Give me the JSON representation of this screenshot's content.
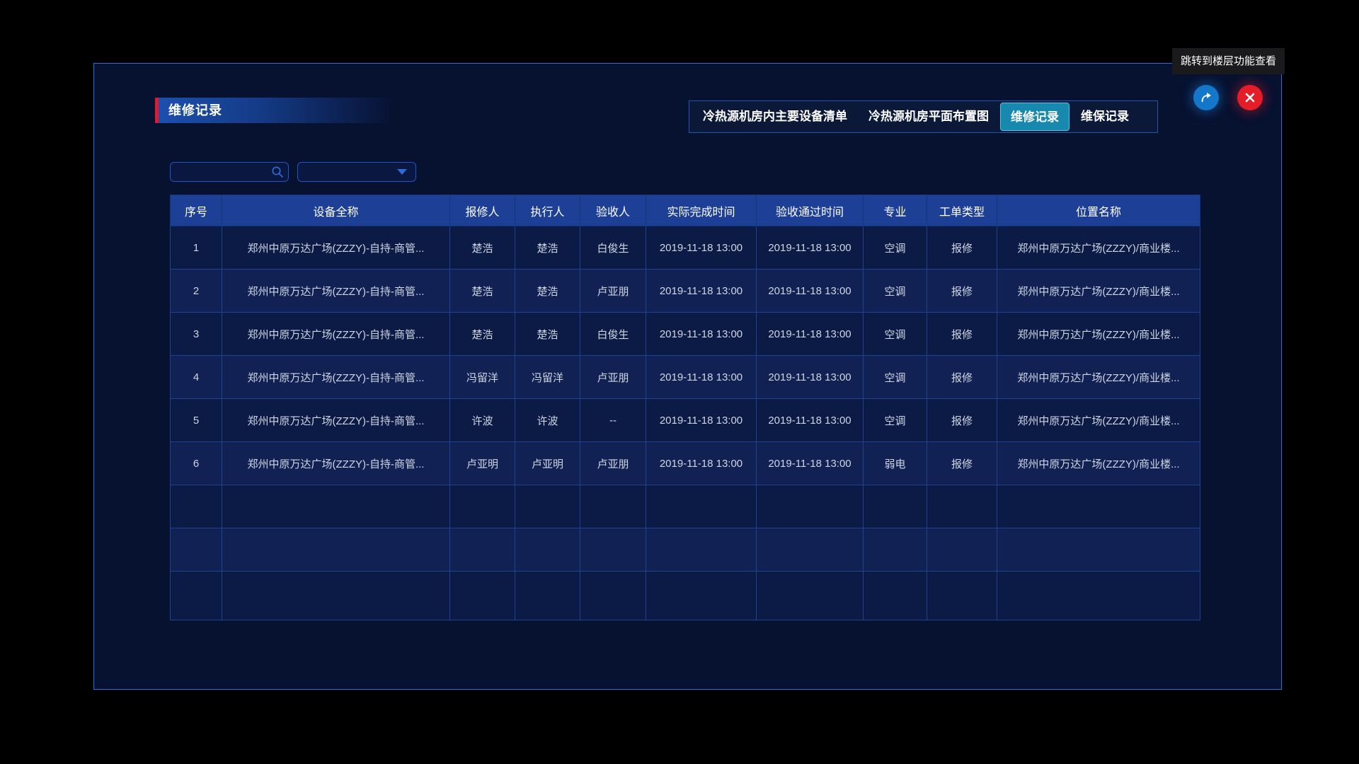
{
  "tooltip": {
    "text": "跳转到楼层功能查看"
  },
  "panel": {
    "title": "维修记录",
    "tabs": [
      {
        "label": "冷热源机房内主要设备清单",
        "active": false
      },
      {
        "label": "冷热源机房平面布置图",
        "active": false
      },
      {
        "label": "维修记录",
        "active": true
      },
      {
        "label": "维保记录",
        "active": false
      }
    ],
    "actions": {
      "jump_icon": "share-arrow-icon",
      "close_icon": "close-x-icon"
    }
  },
  "filters": {
    "search": {
      "value": "",
      "placeholder": ""
    },
    "dropdown": {
      "selected_value": ""
    }
  },
  "table": {
    "columns": [
      "序号",
      "设备全称",
      "报修人",
      "执行人",
      "验收人",
      "实际完成时间",
      "验收通过时间",
      "专业",
      "工单类型",
      "位置名称"
    ],
    "rows": [
      [
        "1",
        "郑州中原万达广场(ZZZY)-自持-商管...",
        "楚浩",
        "楚浩",
        "白俊生",
        "2019-11-18 13:00",
        "2019-11-18 13:00",
        "空调",
        "报修",
        "郑州中原万达广场(ZZZY)/商业楼..."
      ],
      [
        "2",
        "郑州中原万达广场(ZZZY)-自持-商管...",
        "楚浩",
        "楚浩",
        "卢亚朋",
        "2019-11-18 13:00",
        "2019-11-18 13:00",
        "空调",
        "报修",
        "郑州中原万达广场(ZZZY)/商业楼..."
      ],
      [
        "3",
        "郑州中原万达广场(ZZZY)-自持-商管...",
        "楚浩",
        "楚浩",
        "白俊生",
        "2019-11-18 13:00",
        "2019-11-18 13:00",
        "空调",
        "报修",
        "郑州中原万达广场(ZZZY)/商业楼..."
      ],
      [
        "4",
        "郑州中原万达广场(ZZZY)-自持-商管...",
        "冯留洋",
        "冯留洋",
        "卢亚朋",
        "2019-11-18 13:00",
        "2019-11-18 13:00",
        "空调",
        "报修",
        "郑州中原万达广场(ZZZY)/商业楼..."
      ],
      [
        "5",
        "郑州中原万达广场(ZZZY)-自持-商管...",
        "许波",
        "许波",
        "--",
        "2019-11-18 13:00",
        "2019-11-18 13:00",
        "空调",
        "报修",
        "郑州中原万达广场(ZZZY)/商业楼..."
      ],
      [
        "6",
        "郑州中原万达广场(ZZZY)-自持-商管...",
        "卢亚明",
        "卢亚明",
        "卢亚朋",
        "2019-11-18 13:00",
        "2019-11-18 13:00",
        "弱电",
        "报修",
        "郑州中原万达广场(ZZZY)/商业楼..."
      ]
    ],
    "empty_row_count": 3
  },
  "colors": {
    "panel_border": "#2f6be0",
    "title_accent_red": "#e0192e",
    "title_gradient_blue": "#1d4fae",
    "active_tab_bg": "#1789ae",
    "active_tab_border": "#45c8e8",
    "header_bg": "#1e3f96",
    "row_odd_bg": "#0c1a46",
    "row_even_bg": "#122153",
    "grid_line": "#1e4190",
    "jump_button_bg": "#1477c9",
    "close_button_bg": "#e51d28",
    "input_border": "#2055c8",
    "icon_blue": "#2d6cd8"
  }
}
